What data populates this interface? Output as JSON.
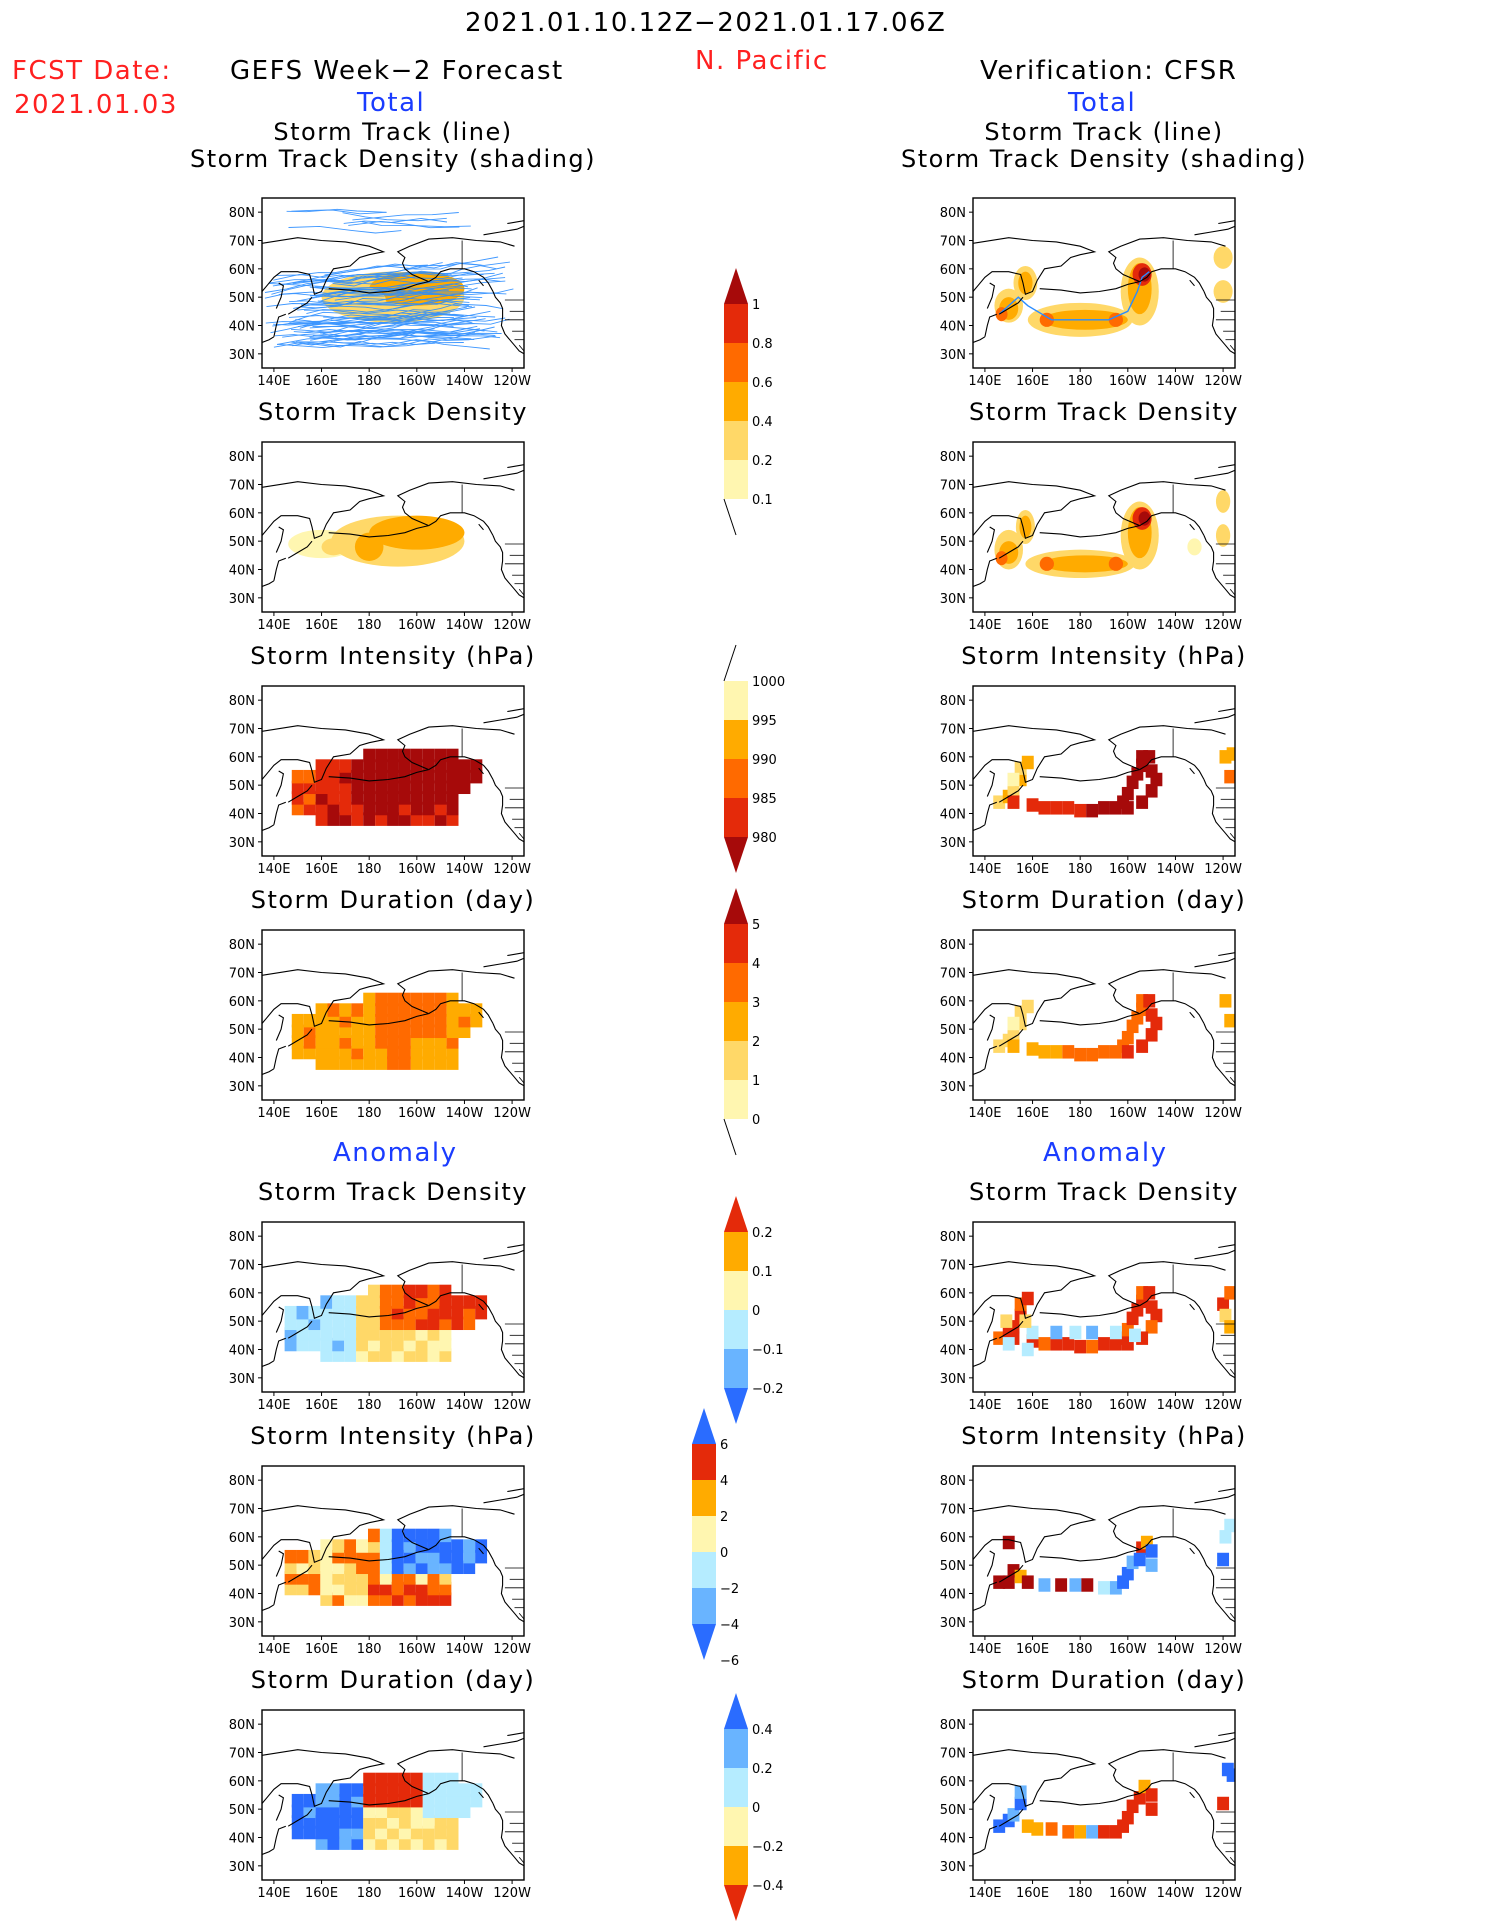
{
  "header": {
    "time_range": "2021.01.10.12Z−2021.01.17.06Z",
    "region": "N. Pacific",
    "fcst_label": "FCST Date:",
    "fcst_date": "2021.01.03",
    "left_title": "GEFS Week−2 Forecast",
    "right_title": "Verification: CFSR",
    "left_section": "Total",
    "right_section": "Total",
    "left_anomaly": "Anomaly",
    "right_anomaly": "Anomaly"
  },
  "colors": {
    "title_blue": "#1a3cff",
    "title_red": "#ff2020",
    "track_line": "#2a8cff",
    "lightyellow": "#fff6b0",
    "yellow": "#ffd868",
    "orange": "#ffab00",
    "darkorange": "#ff6a00",
    "red": "#e42a0a",
    "darkred": "#a60a0a",
    "lightblue": "#b5ecff",
    "midblue": "#69b4ff",
    "blue": "#2a6cff"
  },
  "chart_data": [
    {
      "id": "gefs-track",
      "type": "heatmap",
      "title": "Storm Track (line)",
      "subtitle": "Storm Track Density (shading)",
      "x_ticks": [
        "140E",
        "160E",
        "180",
        "160W",
        "140W",
        "120W"
      ],
      "y_ticks": [
        "80N",
        "70N",
        "60N",
        "50N",
        "40N",
        "30N"
      ],
      "colorbar": "density",
      "overlay": "storm tracks (ensemble)"
    },
    {
      "id": "cfsr-track",
      "type": "heatmap",
      "title": "Storm Track (line)",
      "subtitle": "Storm Track Density (shading)",
      "x_ticks": [
        "140E",
        "160E",
        "180",
        "160W",
        "140W",
        "120W"
      ],
      "y_ticks": [
        "80N",
        "70N",
        "60N",
        "50N",
        "40N",
        "30N"
      ],
      "colorbar": "density",
      "overlay": "storm track"
    },
    {
      "id": "gefs-density",
      "type": "heatmap",
      "title": "Storm Track Density",
      "x_ticks": [
        "140E",
        "160E",
        "180",
        "160W",
        "140W",
        "120W"
      ],
      "y_ticks": [
        "80N",
        "70N",
        "60N",
        "50N",
        "40N",
        "30N"
      ],
      "colorbar": "density"
    },
    {
      "id": "cfsr-density",
      "type": "heatmap",
      "title": "Storm Track Density",
      "x_ticks": [
        "140E",
        "160E",
        "180",
        "160W",
        "140W",
        "120W"
      ],
      "y_ticks": [
        "80N",
        "70N",
        "60N",
        "50N",
        "40N",
        "30N"
      ],
      "colorbar": "density"
    },
    {
      "id": "gefs-intensity",
      "type": "heatmap",
      "title": "Storm Intensity (hPa)",
      "x_ticks": [
        "140E",
        "160E",
        "180",
        "160W",
        "140W",
        "120W"
      ],
      "y_ticks": [
        "80N",
        "70N",
        "60N",
        "50N",
        "40N",
        "30N"
      ],
      "colorbar": "intensity"
    },
    {
      "id": "cfsr-intensity",
      "type": "heatmap",
      "title": "Storm Intensity (hPa)",
      "x_ticks": [
        "140E",
        "160E",
        "180",
        "160W",
        "140W",
        "120W"
      ],
      "y_ticks": [
        "80N",
        "70N",
        "60N",
        "50N",
        "40N",
        "30N"
      ],
      "colorbar": "intensity"
    },
    {
      "id": "gefs-duration",
      "type": "heatmap",
      "title": "Storm Duration (day)",
      "x_ticks": [
        "140E",
        "160E",
        "180",
        "160W",
        "140W",
        "120W"
      ],
      "y_ticks": [
        "80N",
        "70N",
        "60N",
        "50N",
        "40N",
        "30N"
      ],
      "colorbar": "duration"
    },
    {
      "id": "cfsr-duration",
      "type": "heatmap",
      "title": "Storm Duration (day)",
      "x_ticks": [
        "140E",
        "160E",
        "180",
        "160W",
        "140W",
        "120W"
      ],
      "y_ticks": [
        "80N",
        "70N",
        "60N",
        "50N",
        "40N",
        "30N"
      ],
      "colorbar": "duration"
    },
    {
      "id": "gefs-anom-density",
      "type": "heatmap",
      "title": "Storm Track Density",
      "x_ticks": [
        "140E",
        "160E",
        "180",
        "160W",
        "140W",
        "120W"
      ],
      "y_ticks": [
        "80N",
        "70N",
        "60N",
        "50N",
        "40N",
        "30N"
      ],
      "colorbar": "anom_density"
    },
    {
      "id": "cfsr-anom-density",
      "type": "heatmap",
      "title": "Storm Track Density",
      "x_ticks": [
        "140E",
        "160E",
        "180",
        "160W",
        "140W",
        "120W"
      ],
      "y_ticks": [
        "80N",
        "70N",
        "60N",
        "50N",
        "40N",
        "30N"
      ],
      "colorbar": "anom_density"
    },
    {
      "id": "gefs-anom-intensity",
      "type": "heatmap",
      "title": "Storm Intensity (hPa)",
      "x_ticks": [
        "140E",
        "160E",
        "180",
        "160W",
        "140W",
        "120W"
      ],
      "y_ticks": [
        "80N",
        "70N",
        "60N",
        "50N",
        "40N",
        "30N"
      ],
      "colorbar": "anom_intensity"
    },
    {
      "id": "cfsr-anom-intensity",
      "type": "heatmap",
      "title": "Storm Intensity (hPa)",
      "x_ticks": [
        "140E",
        "160E",
        "180",
        "160W",
        "140W",
        "120W"
      ],
      "y_ticks": [
        "80N",
        "70N",
        "60N",
        "50N",
        "40N",
        "30N"
      ],
      "colorbar": "anom_intensity"
    },
    {
      "id": "gefs-anom-duration",
      "type": "heatmap",
      "title": "Storm Duration (day)",
      "x_ticks": [
        "140E",
        "160E",
        "180",
        "160W",
        "140W",
        "120W"
      ],
      "y_ticks": [
        "80N",
        "70N",
        "60N",
        "50N",
        "40N",
        "30N"
      ],
      "colorbar": "anom_duration"
    },
    {
      "id": "cfsr-anom-duration",
      "type": "heatmap",
      "title": "Storm Duration (day)",
      "x_ticks": [
        "140E",
        "160E",
        "180",
        "160W",
        "140W",
        "120W"
      ],
      "y_ticks": [
        "80N",
        "70N",
        "60N",
        "50N",
        "40N",
        "30N"
      ],
      "colorbar": "anom_duration"
    }
  ],
  "colorbars": {
    "density": {
      "labels": [
        "0.1",
        "0.2",
        "0.4",
        "0.6",
        "0.8",
        "1"
      ],
      "colors": [
        "#fff6b0",
        "#ffd868",
        "#ffab00",
        "#ff6a00",
        "#e42a0a",
        "#a60a0a"
      ],
      "end": "top"
    },
    "intensity": {
      "labels": [
        "1000",
        "995",
        "990",
        "985",
        "980"
      ],
      "colors": [
        "#fff6b0",
        "#ffab00",
        "#ff6a00",
        "#e42a0a",
        "#a60a0a"
      ],
      "end": "bottom"
    },
    "duration": {
      "labels": [
        "0",
        "1",
        "2",
        "3",
        "4",
        "5"
      ],
      "colors": [
        "#fff6b0",
        "#ffd868",
        "#ffab00",
        "#ff6a00",
        "#e42a0a",
        "#a60a0a"
      ],
      "end": "top"
    },
    "anom_density": {
      "labels": [
        "-0.2",
        "-0.1",
        "0",
        "0.1",
        "0.2"
      ],
      "colors": [
        "#2a6cff",
        "#69b4ff",
        "#b5ecff",
        "#fff6b0",
        "#ffab00",
        "#e42a0a"
      ],
      "end": "both"
    },
    "anom_intensity": {
      "labels": [
        "6",
        "4",
        "2",
        "0",
        "-2",
        "-4",
        "-6"
      ],
      "colors": [
        "#a60a0a",
        "#e42a0a",
        "#ffab00",
        "#fff6b0",
        "#b5ecff",
        "#69b4ff",
        "#2a6cff"
      ],
      "end": "both"
    },
    "anom_duration": {
      "labels": [
        "0.4",
        "0.2",
        "0",
        "-0.2",
        "-0.4"
      ],
      "colors": [
        "#e42a0a",
        "#ffab00",
        "#fff6b0",
        "#b5ecff",
        "#69b4ff",
        "#2a6cff"
      ],
      "end": "both"
    }
  }
}
